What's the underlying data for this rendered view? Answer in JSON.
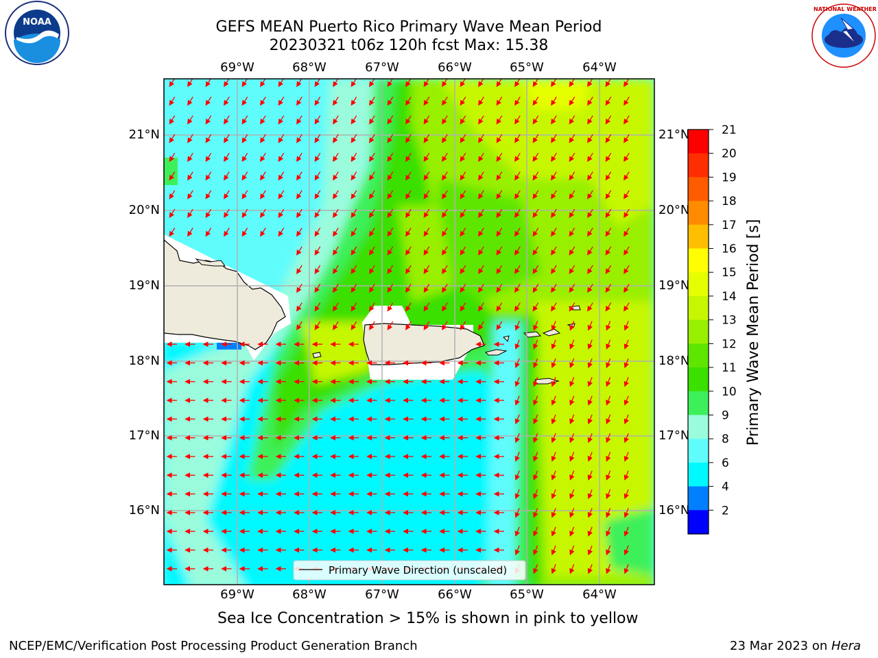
{
  "header": {
    "title_line1": "GEFS MEAN Puerto Rico Primary Wave Mean Period",
    "title_line2": "20230321 t06z 120h fcst   Max: 15.38"
  },
  "map": {
    "lon_labels": [
      "69°W",
      "68°W",
      "67°W",
      "66°W",
      "65°W",
      "64°W"
    ],
    "lat_labels": [
      "21°N",
      "20°N",
      "19°N",
      "18°N",
      "17°N",
      "16°N"
    ],
    "legend_label": "Primary Wave Direction (unscaled)"
  },
  "colorbar": {
    "label": "Primary Wave Mean Period [s]",
    "ticks": [
      "21",
      "20",
      "19",
      "18",
      "17",
      "16",
      "15",
      "14",
      "13",
      "12",
      "11",
      "10",
      "9",
      "8",
      "6",
      "4",
      "2"
    ],
    "colors": [
      "#ff0000",
      "#ff2e00",
      "#ff5c00",
      "#ff8c00",
      "#ffbf00",
      "#ffff00",
      "#e6ff00",
      "#c6f700",
      "#99ef00",
      "#5ee600",
      "#3ae000",
      "#3df05a",
      "#9afcdd",
      "#60fcfc",
      "#00f8ff",
      "#0080ff",
      "#0000ff"
    ]
  },
  "notes": {
    "sea_ice": "Sea Ice Concentration > 15% is shown in pink to yellow"
  },
  "footer": {
    "left": "NCEP/EMC/Verification Post Processing Product Generation Branch",
    "date": "23 Mar 2023 on ",
    "machine": "Hera"
  },
  "logos": {
    "noaa_text": "NOAA",
    "nws_text": "NATIONAL WEATHER SERVICE"
  }
}
